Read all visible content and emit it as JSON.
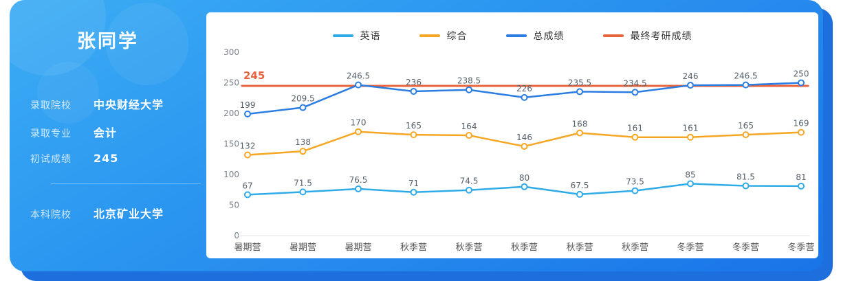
{
  "profile": {
    "name": "张同学",
    "fields": [
      {
        "label": "录取院校",
        "value": "中央财经大学"
      },
      {
        "label": "录取专业",
        "value": "会计"
      },
      {
        "label": "初试成绩",
        "value": "245"
      }
    ],
    "undergrad": {
      "label": "本科院校",
      "value": "北京矿业大学"
    }
  },
  "chart_data": {
    "type": "line",
    "title": "",
    "xlabel": "",
    "ylabel": "",
    "ylim": [
      0,
      300
    ],
    "yticks": [
      0,
      50,
      100,
      150,
      200,
      250,
      300
    ],
    "grid": false,
    "legend_position": "top",
    "categories": [
      "暑期营",
      "暑期营",
      "暑期营",
      "秋季营",
      "秋季营",
      "秋季营",
      "秋季营",
      "秋季营",
      "冬季营",
      "冬季营",
      "冬季营"
    ],
    "series": [
      {
        "name": "英语",
        "color": "#2fabe8",
        "values": [
          67,
          71.5,
          76.5,
          71,
          74.5,
          80,
          67.5,
          73.5,
          85,
          81.5,
          81
        ]
      },
      {
        "name": "综合",
        "color": "#f5a623",
        "values": [
          132,
          138,
          170,
          165,
          164,
          146,
          168,
          161,
          161,
          165,
          169
        ]
      },
      {
        "name": "总成绩",
        "color": "#2b7de1",
        "values": [
          199,
          209.5,
          246.5,
          236,
          238.5,
          226,
          235.5,
          234.5,
          246,
          246.5,
          250
        ]
      },
      {
        "name": "最终考研成绩",
        "color": "#e8643c",
        "constant": 245,
        "label": "245"
      }
    ]
  }
}
